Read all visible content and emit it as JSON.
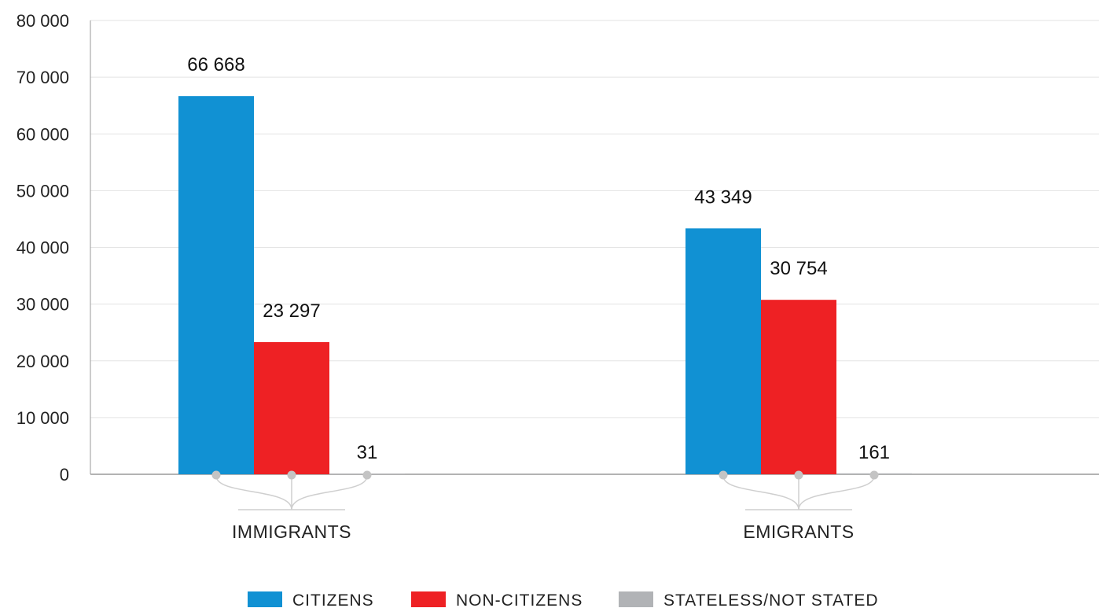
{
  "chart_data": {
    "type": "bar",
    "categories": [
      "IMMIGRANTS",
      "EMIGRANTS"
    ],
    "series": [
      {
        "name": "CITIZENS",
        "values": [
          66668,
          43349
        ],
        "color": "#1191D3",
        "labels": [
          "66 668",
          "43 349"
        ]
      },
      {
        "name": "NON-CITIZENS",
        "values": [
          23297,
          30754
        ],
        "color": "#EE2124",
        "labels": [
          "23 297",
          "30 754"
        ]
      },
      {
        "name": "STATELESS/NOT STATED",
        "values": [
          31,
          161
        ],
        "color": "#B1B3B6",
        "labels": [
          "31",
          "161"
        ]
      }
    ],
    "ylim": [
      0,
      80000
    ],
    "yticks": [
      0,
      10000,
      20000,
      30000,
      40000,
      50000,
      60000,
      70000,
      80000
    ],
    "ytick_labels": [
      "0",
      "10 000",
      "20 000",
      "30 000",
      "40 000",
      "50 000",
      "60 000",
      "70 000",
      "80 000"
    ],
    "grid": true,
    "legend_position": "bottom"
  }
}
